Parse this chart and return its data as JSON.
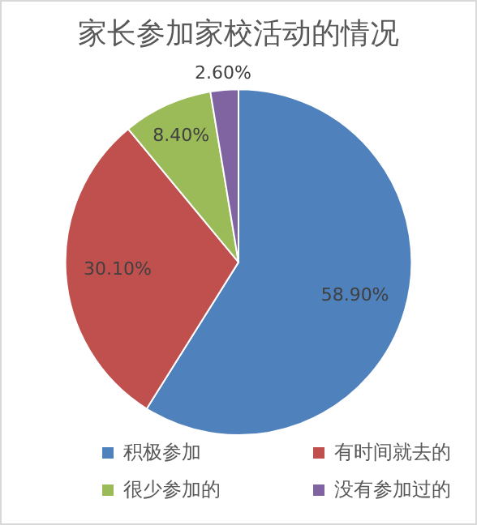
{
  "chart_data": {
    "type": "pie",
    "title": "家长参加家校活动的情况",
    "categories": [
      "积极参加",
      "有时间就去的",
      "很少参加的",
      "没有参加过的"
    ],
    "values": [
      58.9,
      30.1,
      8.4,
      2.6
    ],
    "colors": [
      "#4f81bd",
      "#c0504d",
      "#9bbb59",
      "#8064a2"
    ],
    "value_labels": [
      "58.90%",
      "30.10%",
      "8.40%",
      "2.60%"
    ],
    "legend": "bottom"
  }
}
